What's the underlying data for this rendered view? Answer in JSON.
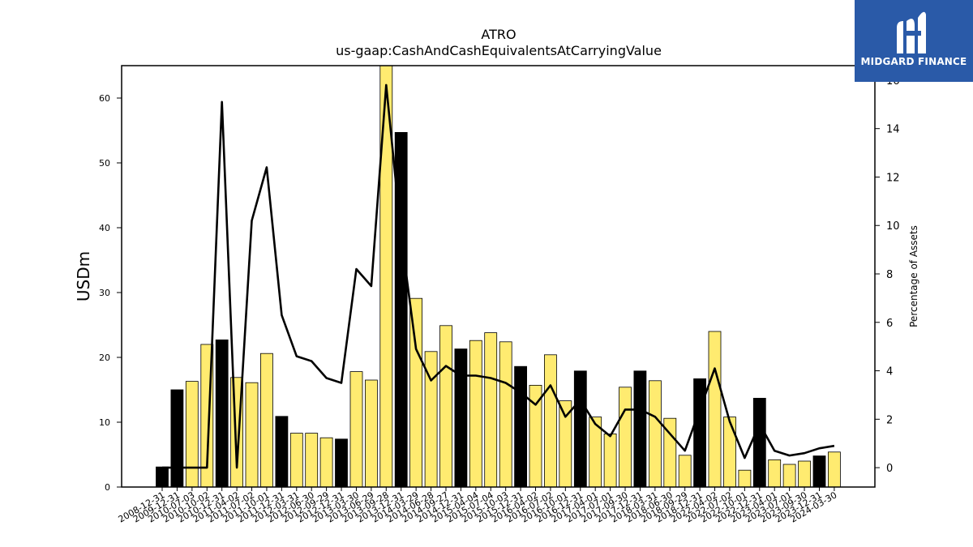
{
  "chart_data": {
    "type": "bar",
    "title": "ATRO",
    "subtitle": "us-gaap:CashAndCashEquivalentsAtCarryingValue",
    "ylabel": "USDm",
    "y2label": "Percentage of Assets",
    "ylim": [
      0,
      65
    ],
    "y2lim": [
      -0.8,
      16.6
    ],
    "yticks": [
      0,
      10,
      20,
      30,
      40,
      50,
      60
    ],
    "y2ticks": [
      0,
      2,
      4,
      6,
      8,
      10,
      12,
      14,
      16
    ],
    "x_tick_labels": [
      "2008-12-31",
      "2009-12-31",
      "2010-07-03",
      "2010-10-02",
      "2010-12-31",
      "2011-04-02",
      "2011-07-02",
      "2011-10-01",
      "2011-12-31",
      "2012-03-31",
      "2012-06-30",
      "2012-09-29",
      "2012-12-31",
      "2013-03-30",
      "2013-06-29",
      "2013-09-28",
      "2013-12-31",
      "2014-03-29",
      "2014-06-28",
      "2014-09-27",
      "2014-12-31",
      "2015-04-04",
      "2015-07-04",
      "2015-10-03",
      "2015-12-31",
      "2016-04-02",
      "2016-07-02",
      "2016-10-01",
      "2016-12-31",
      "2017-04-01",
      "2017-07-01",
      "2017-09-30",
      "2017-12-31",
      "2018-03-31",
      "2018-06-30",
      "2018-09-29",
      "2018-12-31",
      "2022-04-02",
      "2022-07-02",
      "2022-10-01",
      "2022-12-31",
      "2023-04-01",
      "2023-07-01",
      "2023-09-30",
      "2023-12-31",
      "2024-03-30"
    ],
    "values": [
      3.1,
      15.0,
      16.3,
      22.0,
      22.7,
      16.9,
      16.1,
      20.6,
      10.9,
      8.3,
      8.3,
      7.6,
      7.4,
      17.8,
      16.5,
      65.0,
      54.7,
      29.1,
      20.9,
      24.9,
      21.3,
      22.6,
      23.8,
      22.4,
      18.6,
      15.7,
      20.4,
      13.3,
      17.9,
      10.8,
      8.2,
      15.4,
      17.9,
      16.4,
      10.6,
      4.9,
      16.7,
      24.0,
      10.8,
      2.6,
      13.7,
      4.2,
      3.5,
      4.0,
      4.8,
      5.4
    ],
    "bar_kind": [
      "annual",
      "annual",
      "quarterly",
      "quarterly",
      "annual",
      "quarterly",
      "quarterly",
      "quarterly",
      "annual",
      "quarterly",
      "quarterly",
      "quarterly",
      "annual",
      "quarterly",
      "quarterly",
      "quarterly",
      "annual",
      "quarterly",
      "quarterly",
      "quarterly",
      "annual",
      "quarterly",
      "quarterly",
      "quarterly",
      "annual",
      "quarterly",
      "quarterly",
      "quarterly",
      "annual",
      "quarterly",
      "quarterly",
      "quarterly",
      "annual",
      "quarterly",
      "quarterly",
      "quarterly",
      "annual",
      "quarterly",
      "quarterly",
      "quarterly",
      "annual",
      "quarterly",
      "quarterly",
      "quarterly",
      "annual",
      "quarterly"
    ],
    "pct_line": [
      0.0,
      0.0,
      0.0,
      0.0,
      15.1,
      0.0,
      10.2,
      12.4,
      6.3,
      4.6,
      4.4,
      3.7,
      3.5,
      8.2,
      7.5,
      15.8,
      9.6,
      4.9,
      3.6,
      4.2,
      3.8,
      3.8,
      3.7,
      3.5,
      3.1,
      2.6,
      3.4,
      2.1,
      2.8,
      1.8,
      1.3,
      2.4,
      2.4,
      2.1,
      1.4,
      0.7,
      2.4,
      4.1,
      1.9,
      0.4,
      1.8,
      0.7,
      0.5,
      0.6,
      0.8,
      0.9
    ],
    "colors": {
      "annual": "#000000",
      "quarterly": "#ffeb70",
      "line": "#000000"
    },
    "grid": false
  },
  "logo": {
    "text": "MIDGARD FINANCE",
    "background": "#2a5aa8",
    "icon": "midgard-m-icon"
  }
}
